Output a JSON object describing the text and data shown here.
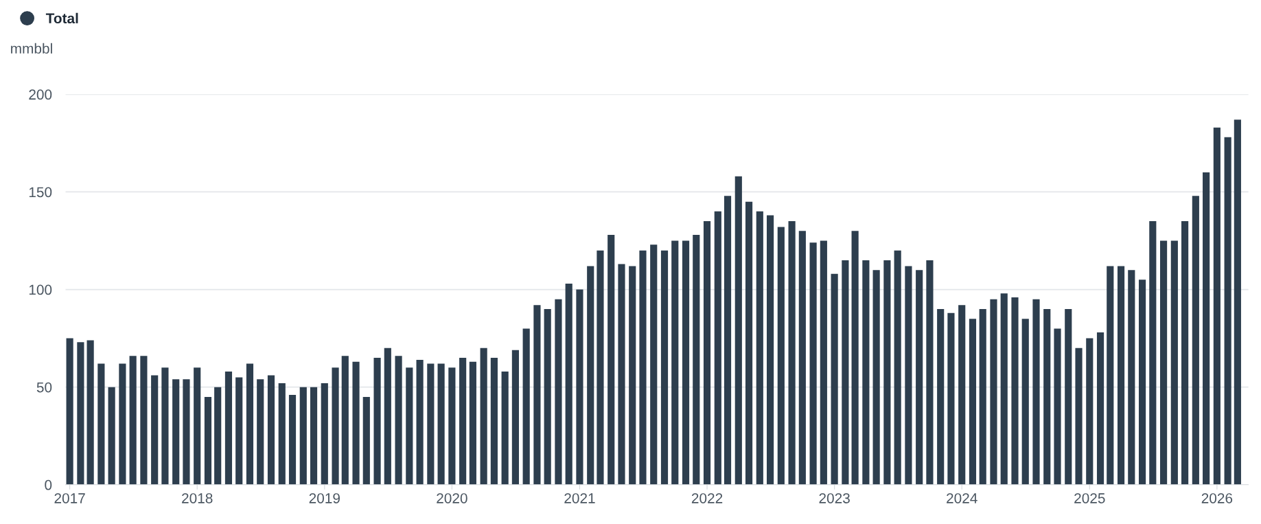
{
  "chart_data": {
    "type": "bar",
    "ylabel": "mmbbl",
    "legend": "top left",
    "grid": "y",
    "x": [
      "2017-01",
      "2017-02",
      "2017-03",
      "2017-04",
      "2017-05",
      "2017-06",
      "2017-07",
      "2017-08",
      "2017-09",
      "2017-10",
      "2017-11",
      "2017-12",
      "2018-01",
      "2018-02",
      "2018-03",
      "2018-04",
      "2018-05",
      "2018-06",
      "2018-07",
      "2018-08",
      "2018-09",
      "2018-10",
      "2018-11",
      "2018-12",
      "2019-01",
      "2019-02",
      "2019-03",
      "2019-04",
      "2019-05",
      "2019-06",
      "2019-07",
      "2019-08",
      "2019-09",
      "2019-10",
      "2019-11",
      "2019-12",
      "2020-01",
      "2020-02",
      "2020-03",
      "2020-04",
      "2020-05",
      "2020-06",
      "2020-07",
      "2020-08",
      "2020-09",
      "2020-10",
      "2020-11",
      "2020-12",
      "2021-01",
      "2021-02",
      "2021-03",
      "2021-04",
      "2021-05",
      "2021-06",
      "2021-07",
      "2021-08",
      "2021-09",
      "2021-10",
      "2021-11",
      "2021-12",
      "2022-01",
      "2022-02",
      "2022-03",
      "2022-04",
      "2022-05",
      "2022-06",
      "2022-07",
      "2022-08",
      "2022-09",
      "2022-10",
      "2022-11",
      "2022-12",
      "2023-01",
      "2023-02",
      "2023-03",
      "2023-04",
      "2023-05",
      "2023-06",
      "2023-07",
      "2023-08",
      "2023-09",
      "2023-10",
      "2023-11",
      "2023-12",
      "2024-01",
      "2024-02",
      "2024-03",
      "2024-04",
      "2024-05",
      "2024-06",
      "2024-07",
      "2024-08",
      "2024-09",
      "2024-10",
      "2024-11",
      "2024-12",
      "2025-01",
      "2025-02",
      "2025-03",
      "2025-04",
      "2025-05",
      "2025-06",
      "2025-07",
      "2025-08",
      "2025-09",
      "2025-10",
      "2025-11",
      "2025-12",
      "2026-01",
      "2026-02",
      "2026-03"
    ],
    "series": [
      {
        "name": "Total",
        "color": "#2d3e4e",
        "values": [
          75,
          73,
          74,
          62,
          50,
          62,
          66,
          66,
          56,
          60,
          54,
          54,
          60,
          45,
          50,
          58,
          55,
          62,
          54,
          56,
          52,
          46,
          50,
          50,
          52,
          60,
          66,
          63,
          45,
          65,
          70,
          66,
          60,
          64,
          62,
          62,
          60,
          65,
          63,
          70,
          65,
          58,
          69,
          80,
          92,
          90,
          95,
          103,
          100,
          112,
          120,
          128,
          113,
          112,
          120,
          123,
          120,
          125,
          125,
          128,
          135,
          140,
          148,
          158,
          145,
          140,
          138,
          132,
          135,
          130,
          124,
          125,
          108,
          115,
          130,
          115,
          110,
          115,
          120,
          112,
          110,
          115,
          90,
          88,
          92,
          85,
          90,
          95,
          98,
          96,
          85,
          95,
          90,
          80,
          90,
          70,
          75,
          78,
          112,
          112,
          110,
          105,
          135,
          125,
          125,
          135,
          148,
          160,
          183,
          178,
          187
        ]
      }
    ],
    "xlim": [
      "2016-12-20",
      "2026-04-01"
    ],
    "xticks": [
      {
        "value": "2017",
        "label": "2017"
      },
      {
        "value": "2018",
        "label": "2018"
      },
      {
        "value": "2019",
        "label": "2019"
      },
      {
        "value": "2020",
        "label": "2020"
      },
      {
        "value": "2021",
        "label": "2021"
      },
      {
        "value": "2022",
        "label": "2022"
      },
      {
        "value": "2023",
        "label": "2023"
      },
      {
        "value": "2024",
        "label": "2024"
      },
      {
        "value": "2025",
        "label": "2025"
      },
      {
        "value": "2026",
        "label": "2026"
      }
    ],
    "ylim": [
      0,
      200
    ],
    "yticks": [
      0,
      50,
      100,
      150,
      200
    ]
  }
}
